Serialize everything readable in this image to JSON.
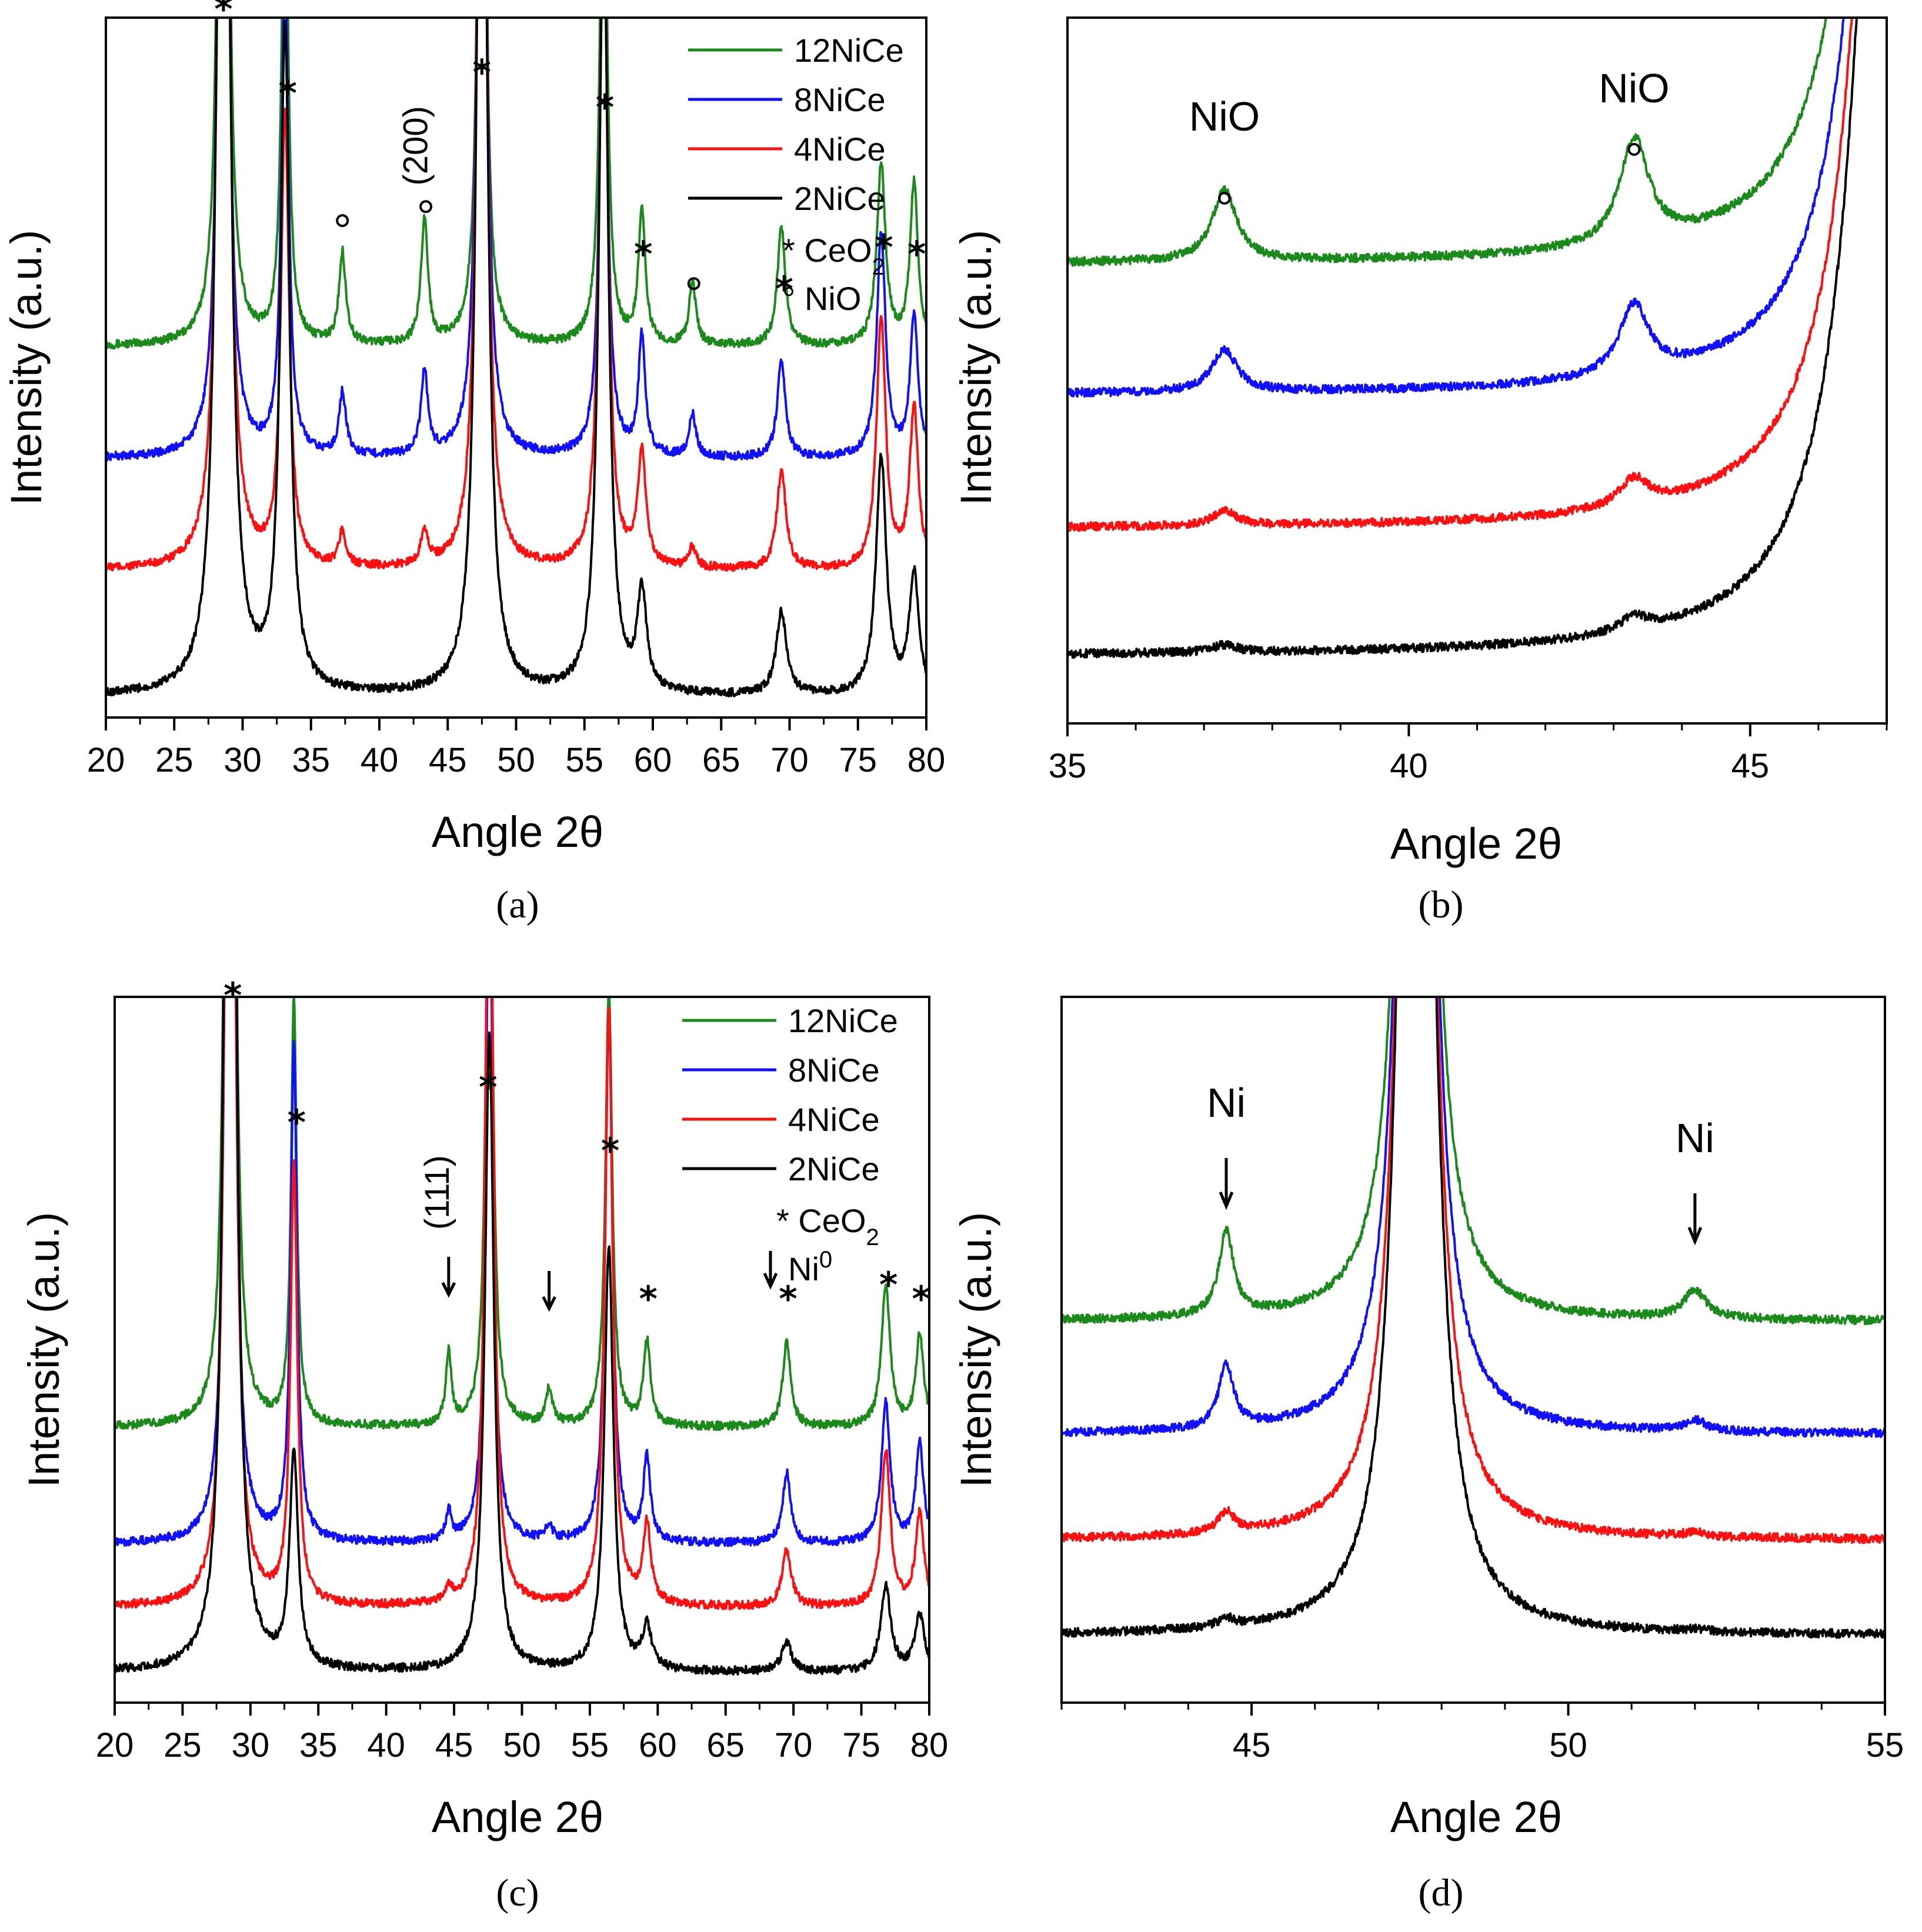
{
  "panels": {
    "a": {
      "caption": "(a)",
      "xlabel": "Angle 2θ",
      "ylabel": "Intensity (a.u.)",
      "ticks": [
        "20",
        "25",
        "30",
        "35",
        "40",
        "45",
        "50",
        "55",
        "60",
        "65",
        "70",
        "75",
        "80"
      ],
      "legend": [
        "12NiCe",
        "8NiCe",
        "4NiCe",
        "2NiCe"
      ],
      "legend_cerium": "CeO",
      "legend_cerium_sub": "2",
      "legend_phase2": "NiO",
      "plane": "(200)"
    },
    "b": {
      "caption": "(b)",
      "xlabel": "Angle 2θ",
      "ylabel": "Intensity (a.u.)",
      "ticks": [
        "35",
        "40",
        "45"
      ],
      "label1": "NiO",
      "label2": "NiO"
    },
    "c": {
      "caption": "(c)",
      "xlabel": "Angle 2θ",
      "ylabel": "Intensity (a.u.)",
      "ticks": [
        "20",
        "25",
        "30",
        "35",
        "40",
        "45",
        "50",
        "55",
        "60",
        "65",
        "70",
        "75",
        "80"
      ],
      "legend": [
        "12NiCe",
        "8NiCe",
        "4NiCe",
        "2NiCe"
      ],
      "legend_cerium": "CeO",
      "legend_cerium_sub": "2",
      "legend_phase2": "Ni",
      "legend_phase2_sup": "0",
      "plane": "(111)"
    },
    "d": {
      "caption": "(d)",
      "xlabel": "Angle 2θ",
      "ylabel": "Intensity (a.u.)",
      "ticks": [
        "45",
        "50",
        "55"
      ],
      "label1": "Ni",
      "label2": "Ni"
    }
  },
  "colors": {
    "12NiCe": "#1a8a1a",
    "8NiCe": "#1010ff",
    "4NiCe": "#ff1010",
    "2NiCe": "#000000"
  },
  "chart_data": [
    {
      "id": "a",
      "type": "line",
      "title": "",
      "xlabel": "Angle 2θ",
      "ylabel": "Intensity (a.u.)",
      "xlim": [
        20,
        80
      ],
      "ylim": [
        0,
        100
      ],
      "series": [
        {
          "name": "12NiCe",
          "offset": 53,
          "peaks": [
            [
              28.6,
              280,
              0.25
            ],
            [
              33.1,
              75,
              0.28
            ],
            [
              37.3,
              13,
              0.3
            ],
            [
              43.3,
              18,
              0.3
            ],
            [
              47.5,
              125,
              0.3
            ],
            [
              56.4,
              82,
              0.3
            ],
            [
              59.2,
              19,
              0.3
            ],
            [
              62.9,
              9,
              0.3
            ],
            [
              69.4,
              17,
              0.35
            ],
            [
              76.7,
              26,
              0.38
            ],
            [
              79.1,
              23,
              0.35
            ]
          ]
        },
        {
          "name": "8NiCe",
          "offset": 37,
          "peaks": [
            [
              28.6,
              240,
              0.28
            ],
            [
              33.1,
              72,
              0.3
            ],
            [
              37.3,
              9,
              0.3
            ],
            [
              43.3,
              12,
              0.3
            ],
            [
              47.5,
              160,
              0.32
            ],
            [
              56.4,
              80,
              0.32
            ],
            [
              59.2,
              17,
              0.3
            ],
            [
              62.9,
              6,
              0.3
            ],
            [
              69.4,
              14,
              0.35
            ],
            [
              76.7,
              32,
              0.38
            ],
            [
              79.1,
              20,
              0.35
            ]
          ]
        },
        {
          "name": "4NiCe",
          "offset": 21,
          "peaks": [
            [
              28.6,
              260,
              0.32
            ],
            [
              33.1,
              65,
              0.35
            ],
            [
              37.3,
              5,
              0.3
            ],
            [
              43.3,
              5,
              0.3
            ],
            [
              47.5,
              172,
              0.35
            ],
            [
              56.4,
              100,
              0.35
            ],
            [
              59.2,
              16,
              0.35
            ],
            [
              62.9,
              3,
              0.3
            ],
            [
              69.4,
              14,
              0.4
            ],
            [
              76.7,
              36,
              0.4
            ],
            [
              79.1,
              23,
              0.38
            ]
          ]
        },
        {
          "name": "2NiCe",
          "offset": 3,
          "peaks": [
            [
              28.6,
              265,
              0.38
            ],
            [
              33.1,
              95,
              0.4
            ],
            [
              47.5,
              175,
              0.4
            ],
            [
              56.4,
              115,
              0.4
            ],
            [
              59.2,
              14,
              0.4
            ],
            [
              69.4,
              12,
              0.45
            ],
            [
              76.7,
              34,
              0.45
            ],
            [
              79.1,
              17,
              0.42
            ]
          ]
        }
      ],
      "annotations": [
        {
          "text": "*",
          "x": 28.6,
          "y": 102
        },
        {
          "text": "*",
          "x": 33.3,
          "y": 90
        },
        {
          "text": "°",
          "x": 37.3,
          "y": 71
        },
        {
          "text": "°",
          "x": 43.4,
          "y": 73
        },
        {
          "text": "*",
          "x": 47.5,
          "y": 93
        },
        {
          "text": "*",
          "x": 56.5,
          "y": 88
        },
        {
          "text": "*",
          "x": 59.3,
          "y": 67
        },
        {
          "text": "°",
          "x": 63.0,
          "y": 62
        },
        {
          "text": "*",
          "x": 69.6,
          "y": 62
        },
        {
          "text": "*",
          "x": 76.9,
          "y": 68
        },
        {
          "text": "*",
          "x": 79.3,
          "y": 67
        }
      ]
    },
    {
      "id": "b",
      "type": "line",
      "title": "",
      "xlabel": "Angle 2θ",
      "ylabel": "Intensity (a.u.)",
      "xlim": [
        35,
        47
      ],
      "ylim": [
        0,
        100
      ],
      "series": [
        {
          "name": "12NiCe",
          "offset": 65,
          "peaks": [
            [
              37.3,
              10,
              0.22
            ],
            [
              43.3,
              15,
              0.26
            ],
            [
              47.2,
              200,
              0.5
            ]
          ]
        },
        {
          "name": "8NiCe",
          "offset": 46.5,
          "peaks": [
            [
              37.3,
              6,
              0.22
            ],
            [
              43.3,
              10,
              0.26
            ],
            [
              47.2,
              200,
              0.5
            ]
          ]
        },
        {
          "name": "4NiCe",
          "offset": 27.5,
          "peaks": [
            [
              37.3,
              2,
              0.22
            ],
            [
              43.3,
              4,
              0.26
            ],
            [
              47.2,
              220,
              0.5
            ]
          ]
        },
        {
          "name": "2NiCe",
          "offset": 9.5,
          "peaks": [
            [
              37.3,
              1,
              0.22
            ],
            [
              43.3,
              2,
              0.26
            ],
            [
              47.2,
              240,
              0.5
            ]
          ]
        }
      ]
    },
    {
      "id": "c",
      "type": "line",
      "title": "",
      "xlabel": "Angle 2θ",
      "ylabel": "Intensity (a.u.)",
      "xlim": [
        20,
        80
      ],
      "ylim": [
        0,
        100
      ],
      "series": [
        {
          "name": "12NiCe",
          "offset": 39,
          "peaks": [
            [
              28.5,
              400,
              0.22
            ],
            [
              33.2,
              60,
              0.25
            ],
            [
              44.6,
              10,
              0.25
            ],
            [
              47.6,
              100,
              0.28
            ],
            [
              52.0,
              5,
              0.3
            ],
            [
              56.4,
              62,
              0.3
            ],
            [
              59.2,
              12,
              0.3
            ],
            [
              69.5,
              12,
              0.35
            ],
            [
              76.8,
              20,
              0.38
            ],
            [
              79.3,
              13,
              0.35
            ]
          ]
        },
        {
          "name": "8NiCe",
          "offset": 22.5,
          "peaks": [
            [
              28.5,
              300,
              0.25
            ],
            [
              33.2,
              70,
              0.28
            ],
            [
              44.6,
              4,
              0.25
            ],
            [
              47.6,
              100,
              0.3
            ],
            [
              52.0,
              2,
              0.3
            ],
            [
              56.4,
              75,
              0.32
            ],
            [
              59.2,
              12,
              0.3
            ],
            [
              69.5,
              10,
              0.35
            ],
            [
              76.8,
              20,
              0.38
            ],
            [
              79.3,
              14,
              0.35
            ]
          ]
        },
        {
          "name": "4NiCe",
          "offset": 13.5,
          "peaks": [
            [
              28.5,
              300,
              0.28
            ],
            [
              33.2,
              62,
              0.3
            ],
            [
              44.6,
              2,
              0.25
            ],
            [
              47.6,
              130,
              0.32
            ],
            [
              56.4,
              85,
              0.35
            ],
            [
              59.2,
              11,
              0.35
            ],
            [
              69.5,
              8,
              0.4
            ],
            [
              76.8,
              22,
              0.4
            ],
            [
              79.3,
              13,
              0.38
            ]
          ]
        },
        {
          "name": "2NiCe",
          "offset": 4.3,
          "peaks": [
            [
              28.5,
              280,
              0.35
            ],
            [
              33.2,
              30,
              0.38
            ],
            [
              47.6,
              90,
              0.4
            ],
            [
              56.4,
              60,
              0.4
            ],
            [
              59.2,
              6,
              0.4
            ],
            [
              69.5,
              4,
              0.45
            ],
            [
              76.8,
              12,
              0.45
            ],
            [
              79.3,
              8,
              0.42
            ]
          ]
        }
      ],
      "annotations": [
        {
          "text": "*",
          "x": 28.7,
          "y": 101
        },
        {
          "text": "*",
          "x": 33.4,
          "y": 83
        },
        {
          "text": "↓",
          "x": 44.6,
          "y": 59
        },
        {
          "text": "↓",
          "x": 52.0,
          "y": 57
        },
        {
          "text": "*",
          "x": 47.5,
          "y": 88
        },
        {
          "text": "*",
          "x": 56.5,
          "y": 79
        },
        {
          "text": "*",
          "x": 59.3,
          "y": 58
        },
        {
          "text": "*",
          "x": 69.6,
          "y": 58
        },
        {
          "text": "*",
          "x": 77.0,
          "y": 60
        },
        {
          "text": "*",
          "x": 79.4,
          "y": 58
        }
      ]
    },
    {
      "id": "d",
      "type": "line",
      "title": "",
      "xlabel": "Angle 2θ",
      "ylabel": "Intensity (a.u.)",
      "xlim": [
        42,
        55
      ],
      "ylim": [
        0,
        100
      ],
      "series": [
        {
          "name": "12NiCe",
          "offset": 54,
          "peaks": [
            [
              44.6,
              12,
              0.14
            ],
            [
              47.6,
              300,
              0.18
            ],
            [
              52.0,
              4,
              0.22
            ]
          ]
        },
        {
          "name": "8NiCe",
          "offset": 38,
          "peaks": [
            [
              44.6,
              9,
              0.14
            ],
            [
              47.6,
              300,
              0.19
            ],
            [
              52.0,
              1.5,
              0.22
            ]
          ]
        },
        {
          "name": "4NiCe",
          "offset": 23,
          "peaks": [
            [
              44.6,
              3,
              0.15
            ],
            [
              47.6,
              300,
              0.2
            ],
            [
              52.0,
              0.6,
              0.22
            ]
          ]
        },
        {
          "name": "2NiCe",
          "offset": 9.5,
          "peaks": [
            [
              44.6,
              1.2,
              0.16
            ],
            [
              47.6,
              300,
              0.21
            ],
            [
              52.0,
              0.3,
              0.22
            ]
          ]
        }
      ]
    }
  ]
}
